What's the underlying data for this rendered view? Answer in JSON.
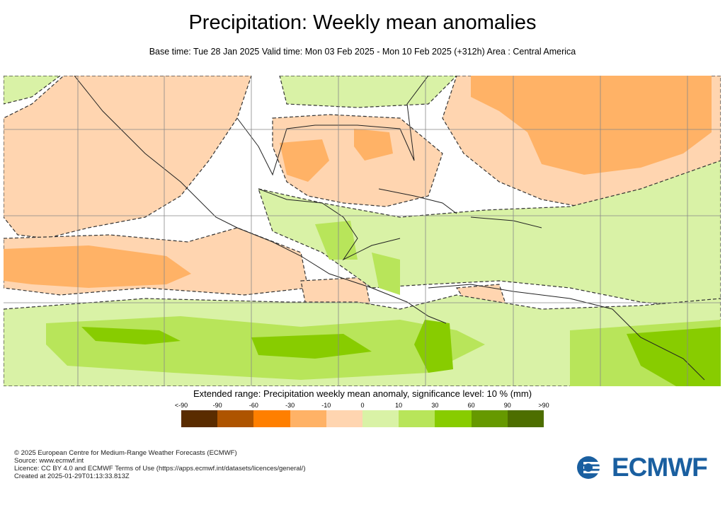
{
  "title": "Precipitation: Weekly mean anomalies",
  "subtitle": "Base time: Tue 28 Jan 2025 Valid time: Mon 03 Feb 2025 - Mon 10 Feb 2025 (+312h) Area : Central America",
  "legend": {
    "title": "Extended range: Precipitation weekly mean anomaly, significance level: 10 % (mm)",
    "labels": [
      "<-90",
      "-90",
      "-60",
      "-30",
      "-10",
      "0",
      "10",
      "30",
      "60",
      "90",
      ">90"
    ],
    "colors": [
      "#5a2c00",
      "#ae5400",
      "#ff7f00",
      "#ffb266",
      "#ffd5b0",
      "#d9f2a6",
      "#b8e55a",
      "#88cc00",
      "#669900",
      "#4d6e00"
    ]
  },
  "footer": {
    "line1": "© 2025 European Centre for Medium-Range Weather Forecasts (ECMWF)",
    "line2": "Source: www.ecmwf.int",
    "line3": "Licence: CC BY 4.0 and ECMWF Terms of Use (https://apps.ecmwf.int/datasets/licences/general/)",
    "line4": "Created at 2025-01-29T01:13:33.813Z"
  },
  "logo": {
    "text": "ECMWF",
    "color": "#1a5fa0"
  }
}
